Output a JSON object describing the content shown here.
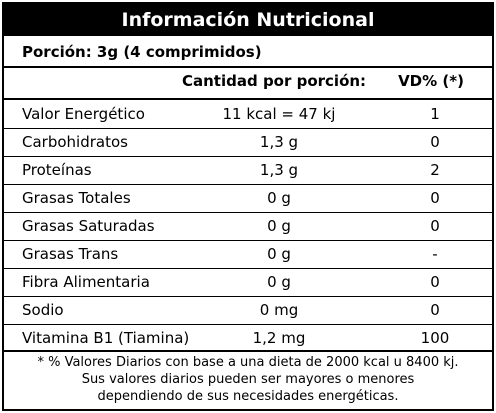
{
  "label": {
    "title": "Información Nutricional",
    "serving": "Porción: 3g (4 comprimidos)",
    "headers": {
      "amount": "Cantidad por porción:",
      "dv": "VD% (*)"
    },
    "rows": [
      {
        "nutrient": "Valor Energético",
        "amount": "11 kcal = 47 kj",
        "dv": "1"
      },
      {
        "nutrient": "Carbohidratos",
        "amount": "1,3 g",
        "dv": "0"
      },
      {
        "nutrient": "Proteínas",
        "amount": "1,3 g",
        "dv": "2"
      },
      {
        "nutrient": "Grasas Totales",
        "amount": "0 g",
        "dv": "0"
      },
      {
        "nutrient": "Grasas Saturadas",
        "amount": "0 g",
        "dv": "0"
      },
      {
        "nutrient": "Grasas Trans",
        "amount": "0 g",
        "dv": "-"
      },
      {
        "nutrient": "Fibra Alimentaria",
        "amount": "0 g",
        "dv": "0"
      },
      {
        "nutrient": "Sodio",
        "amount": "0 mg",
        "dv": "0"
      },
      {
        "nutrient": "Vitamina B1 (Tiamina)",
        "amount": "1,2 mg",
        "dv": "100"
      }
    ],
    "footnote": [
      "* % Valores Diarios con base a una dieta de 2000 kcal u 8400 kj.",
      "Sus valores diarios pueden ser mayores o menores",
      "dependiendo de sus necesidades energéticas."
    ]
  }
}
